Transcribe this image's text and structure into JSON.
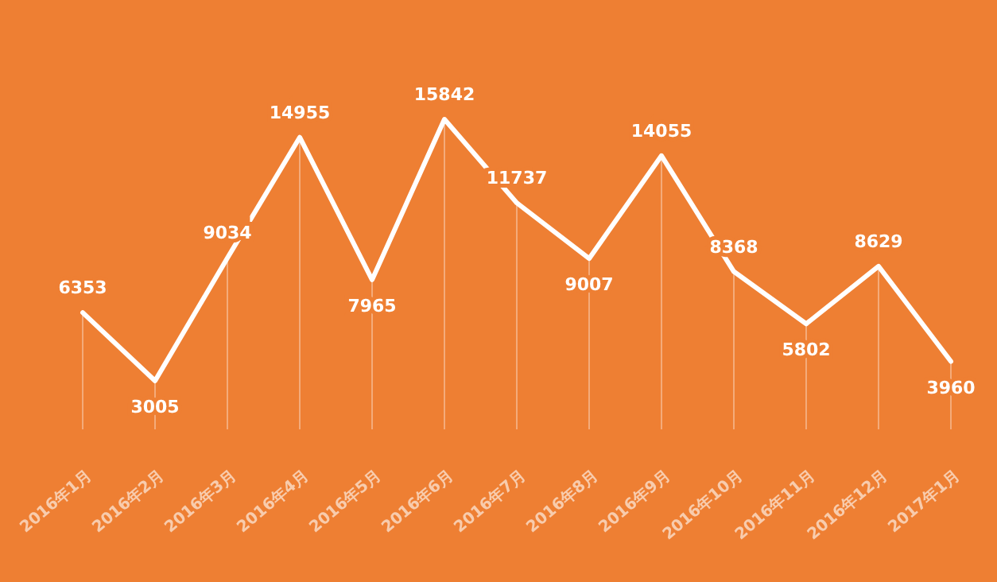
{
  "chart_data": {
    "type": "line",
    "categories": [
      "2016年1月",
      "2016年2月",
      "2016年3月",
      "2016年4月",
      "2016年5月",
      "2016年6月",
      "2016年7月",
      "2016年8月",
      "2016年9月",
      "2016年10月",
      "2016年11月",
      "2016年12月",
      "2017年1月"
    ],
    "values": [
      6353,
      3005,
      9034,
      14955,
      7965,
      15842,
      11737,
      9007,
      14055,
      8368,
      5802,
      8629,
      3960
    ],
    "color": "#ffffff",
    "data_labels": true,
    "grid": "x",
    "marker": "none",
    "line_style": "solid"
  }
}
